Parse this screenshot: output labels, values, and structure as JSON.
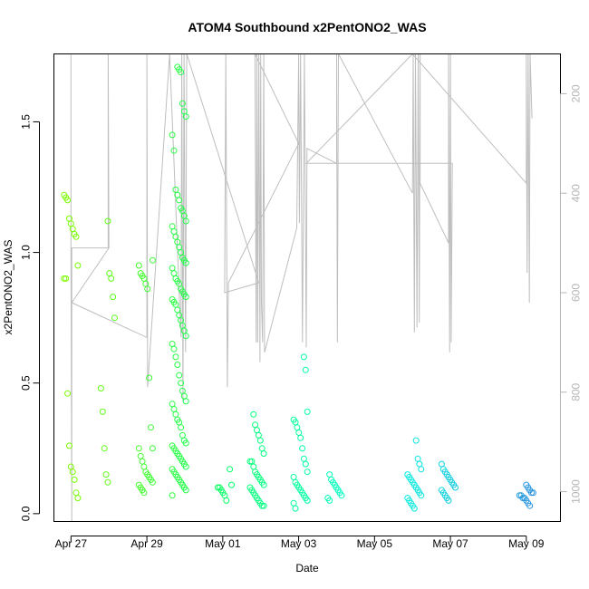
{
  "chart_data": {
    "type": "scatter",
    "title": "ATOM4 Southbound x2PentONO2_WAS",
    "xlabel": "Date",
    "ylabel": "x2PentONO2_WAS",
    "x_ticks": [
      "Apr 27",
      "Apr 29",
      "May 01",
      "May 03",
      "May 05",
      "May 07",
      "May 09"
    ],
    "x_range_days": [
      -0.45,
      12.9
    ],
    "ylim": [
      -0.03,
      1.76
    ],
    "y_ticks": [
      0.0,
      0.5,
      1.0,
      1.5
    ],
    "y_tick_labels": [
      "0.0",
      "0.5",
      "1.0",
      "1.5"
    ],
    "y2_ticks": [
      200,
      400,
      600,
      800,
      1000
    ],
    "y2_tick_labels": [
      "200",
      "400",
      "600",
      "800",
      "1000"
    ],
    "y2_range_reversed": [
      1060,
      120
    ],
    "grid": false,
    "legend": "none",
    "point_color_scale": [
      "#7cfc00",
      "#00ff66",
      "#00ffe0",
      "#2b8fe0"
    ],
    "secondary_series_color": "#bebebe",
    "series": [
      {
        "clusters": [
          {
            "x": 0.0,
            "values": [
              1.22,
              1.21,
              1.2,
              1.13,
              1.11,
              1.09,
              1.07,
              1.06,
              0.95,
              0.9,
              0.9,
              0.46,
              0.26,
              0.18,
              0.16,
              0.13,
              0.08,
              0.06
            ]
          },
          {
            "x": 0.97,
            "values": [
              1.12,
              0.92,
              0.9,
              0.83,
              0.75,
              0.48,
              0.39,
              0.25,
              0.15,
              0.12
            ]
          },
          {
            "x": 1.97,
            "values": [
              0.97,
              0.95,
              0.92,
              0.91,
              0.9,
              0.88,
              0.86,
              0.52,
              0.33,
              0.25,
              0.25,
              0.22,
              0.2,
              0.18,
              0.16,
              0.15,
              0.14,
              0.13,
              0.12,
              0.11,
              0.1,
              0.09,
              0.08
            ]
          },
          {
            "x": 2.85,
            "values": [
              1.71,
              1.7,
              1.69,
              1.57,
              1.54,
              1.52,
              1.45,
              1.39,
              1.24,
              1.22,
              1.2,
              1.17,
              1.16,
              1.14,
              1.12,
              1.1,
              1.08,
              1.06,
              1.04,
              1.02,
              1.0,
              0.98,
              0.97,
              0.96,
              0.94,
              0.92,
              0.9,
              0.89,
              0.88,
              0.86,
              0.85,
              0.84,
              0.83,
              0.82,
              0.81,
              0.8,
              0.78,
              0.76,
              0.74,
              0.72,
              0.7,
              0.68,
              0.65,
              0.63,
              0.6,
              0.57,
              0.53,
              0.5,
              0.47,
              0.45,
              0.43,
              0.42,
              0.4,
              0.38,
              0.36,
              0.35,
              0.33,
              0.3,
              0.28,
              0.27,
              0.26,
              0.25,
              0.24,
              0.23,
              0.22,
              0.21,
              0.2,
              0.19,
              0.18,
              0.17,
              0.16,
              0.15,
              0.14,
              0.13,
              0.12,
              0.11,
              0.1,
              0.09,
              0.07
            ]
          },
          {
            "x": 4.05,
            "values": [
              0.17,
              0.11,
              0.1,
              0.1,
              0.09,
              0.08,
              0.07,
              0.05
            ]
          },
          {
            "x": 4.9,
            "values": [
              0.38,
              0.34,
              0.32,
              0.3,
              0.28,
              0.25,
              0.23,
              0.2,
              0.2,
              0.18,
              0.16,
              0.15,
              0.14,
              0.13,
              0.12,
              0.11,
              0.1,
              0.09,
              0.08,
              0.07,
              0.06,
              0.05,
              0.04,
              0.03,
              0.03
            ]
          },
          {
            "x": 6.05,
            "values": [
              0.6,
              0.55,
              0.39,
              0.36,
              0.35,
              0.33,
              0.31,
              0.29,
              0.25,
              0.21,
              0.19,
              0.16,
              0.14,
              0.12,
              0.11,
              0.1,
              0.09,
              0.08,
              0.07,
              0.06,
              0.05,
              0.04,
              0.02
            ]
          },
          {
            "x": 6.95,
            "values": [
              0.15,
              0.13,
              0.12,
              0.11,
              0.1,
              0.09,
              0.08,
              0.07,
              0.06,
              0.05
            ]
          },
          {
            "x": 9.05,
            "values": [
              0.28,
              0.21,
              0.19,
              0.17,
              0.15,
              0.14,
              0.13,
              0.12,
              0.11,
              0.1,
              0.09,
              0.08,
              0.07,
              0.06,
              0.05,
              0.04,
              0.03,
              0.02
            ]
          },
          {
            "x": 9.95,
            "values": [
              0.19,
              0.17,
              0.16,
              0.15,
              0.14,
              0.13,
              0.12,
              0.11,
              0.1,
              0.09,
              0.08,
              0.07,
              0.06,
              0.05
            ]
          },
          {
            "x": 12.0,
            "values": [
              0.11,
              0.1,
              0.09,
              0.08,
              0.08,
              0.07,
              0.07,
              0.06,
              0.06,
              0.05,
              0.04,
              0.03
            ]
          }
        ]
      },
      {
        "type": "line",
        "axis": "right",
        "points": [
          [
            0.0,
            120
          ],
          [
            0.0,
            510
          ],
          [
            0.02,
            1060
          ],
          [
            0.02,
            510
          ],
          [
            0.98,
            510
          ],
          [
            0.98,
            120
          ],
          [
            1.0,
            510
          ],
          [
            0.02,
            620
          ],
          [
            2.0,
            690
          ],
          [
            2.0,
            120
          ],
          [
            2.02,
            790
          ],
          [
            2.6,
            120
          ],
          [
            2.9,
            690
          ],
          [
            2.92,
            120
          ],
          [
            2.95,
            820
          ],
          [
            2.98,
            120
          ],
          [
            3.02,
            720
          ],
          [
            3.05,
            120
          ],
          [
            4.95,
            580
          ],
          [
            4.05,
            600
          ],
          [
            4.08,
            120
          ],
          [
            4.12,
            790
          ],
          [
            4.15,
            580
          ],
          [
            6.0,
            300
          ],
          [
            4.85,
            120
          ],
          [
            4.88,
            700
          ],
          [
            4.9,
            120
          ],
          [
            4.92,
            700
          ],
          [
            4.95,
            120
          ],
          [
            4.98,
            740
          ],
          [
            5.0,
            120
          ],
          [
            5.02,
            620
          ],
          [
            5.05,
            700
          ],
          [
            5.08,
            120
          ],
          [
            5.1,
            720
          ],
          [
            5.95,
            470
          ],
          [
            6.0,
            120
          ],
          [
            6.02,
            460
          ],
          [
            6.05,
            120
          ],
          [
            6.1,
            700
          ],
          [
            6.15,
            120
          ],
          [
            6.2,
            710
          ],
          [
            6.22,
            310
          ],
          [
            7.0,
            340
          ],
          [
            7.0,
            120
          ],
          [
            7.02,
            700
          ],
          [
            7.05,
            120
          ],
          [
            9.0,
            400
          ],
          [
            9.02,
            120
          ],
          [
            9.05,
            680
          ],
          [
            9.08,
            120
          ],
          [
            9.12,
            670
          ],
          [
            9.15,
            120
          ],
          [
            9.18,
            660
          ],
          [
            9.2,
            120
          ],
          [
            9.2,
            380
          ],
          [
            9.95,
            500
          ],
          [
            9.95,
            120
          ],
          [
            9.98,
            720
          ],
          [
            10.0,
            120
          ],
          [
            10.02,
            700
          ],
          [
            10.05,
            340
          ],
          [
            6.2,
            340
          ],
          [
            9.0,
            120
          ],
          [
            12.0,
            380
          ],
          [
            12.0,
            120
          ],
          [
            12.02,
            560
          ],
          [
            12.05,
            120
          ],
          [
            12.08,
            620
          ],
          [
            12.1,
            120
          ],
          [
            12.15,
            250
          ]
        ]
      }
    ]
  }
}
